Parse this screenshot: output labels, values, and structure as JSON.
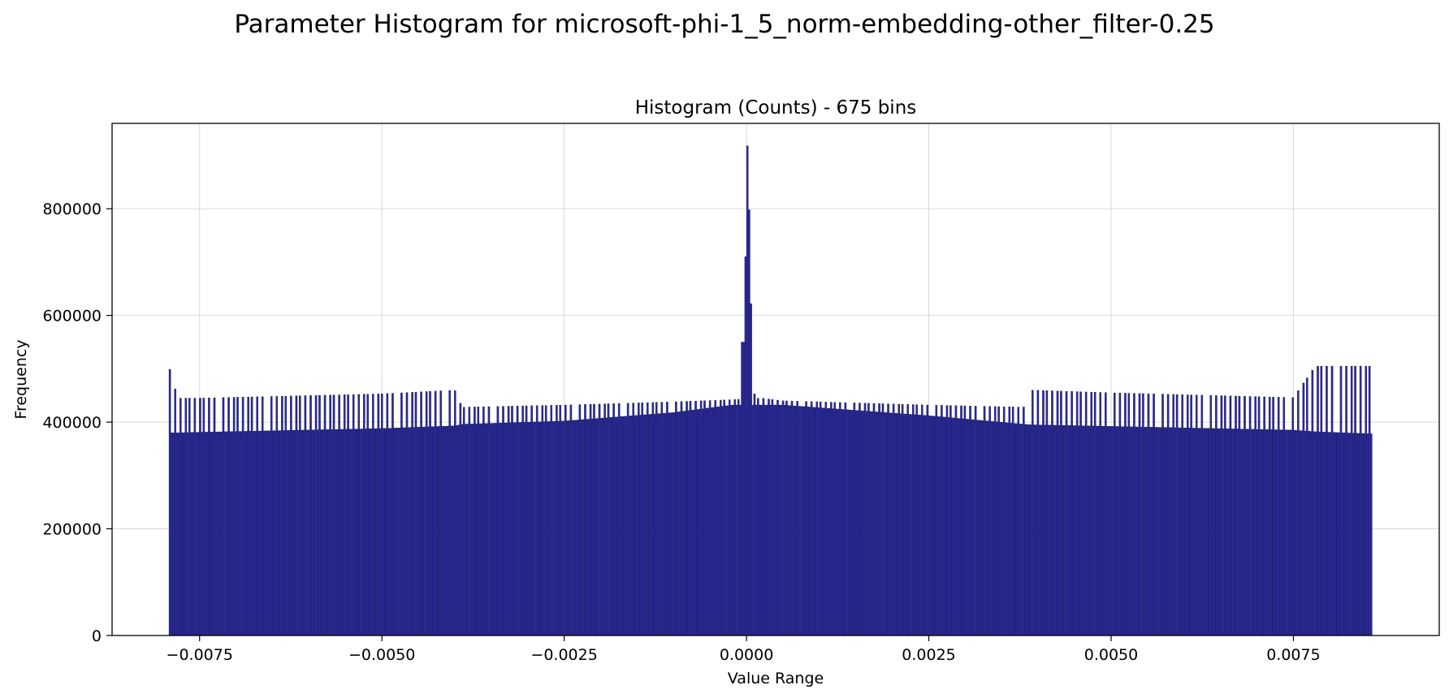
{
  "figure": {
    "suptitle": "Parameter Histogram for microsoft-phi-1_5_norm-embedding-other_filter-0.25"
  },
  "chart_data": {
    "type": "bar",
    "title": "Histogram (Counts) - 675 bins",
    "xlabel": "Value Range",
    "ylabel": "Frequency",
    "bins": 675,
    "xlim": [
      -0.0087,
      0.0095
    ],
    "ylim": [
      0,
      960000
    ],
    "x_ticks": [
      -0.0075,
      -0.005,
      -0.0025,
      0.0,
      0.0025,
      0.005,
      0.0075
    ],
    "x_tick_labels": [
      "−0.0075",
      "−0.0050",
      "−0.0025",
      "0.0000",
      "0.0025",
      "0.0050",
      "0.0075"
    ],
    "y_ticks": [
      0,
      200000,
      400000,
      600000,
      800000
    ],
    "y_tick_labels": [
      "0",
      "200000",
      "400000",
      "600000",
      "800000"
    ],
    "grid": true,
    "bar_color": "#2b2b9c",
    "edge_color": "#0d0d3a",
    "x_range": [
      -0.00792,
      0.00858
    ],
    "profile_anchors": {
      "x": [
        -0.00792,
        -0.0078,
        -0.0075,
        -0.005,
        -0.004,
        -0.0039,
        -0.0025,
        -0.001,
        -0.0002,
        0.0002,
        0.0005,
        0.0025,
        0.0038,
        0.0039,
        0.005,
        0.0075,
        0.0078,
        0.00858
      ],
      "low": [
        380000,
        380000,
        381000,
        388000,
        393000,
        396000,
        402000,
        418000,
        432000,
        432000,
        432000,
        412000,
        396000,
        395000,
        392000,
        385000,
        382000,
        378000
      ],
      "high": [
        505000,
        445000,
        445000,
        453000,
        460000,
        428000,
        432000,
        438000,
        442000,
        445000,
        440000,
        432000,
        428000,
        460000,
        455000,
        446000,
        505000,
        505000
      ]
    },
    "peak_bins": [
      {
        "x": -5e-05,
        "value": 550000
      },
      {
        "x": -2e-05,
        "value": 710000
      },
      {
        "x": 0.0,
        "value": 875000
      },
      {
        "x": 2e-05,
        "value": 918000
      },
      {
        "x": 5e-05,
        "value": 798000
      },
      {
        "x": 7e-05,
        "value": 622000
      },
      {
        "x": 0.0001,
        "value": 500000
      },
      {
        "x": 0.00012,
        "value": 453000
      }
    ]
  }
}
